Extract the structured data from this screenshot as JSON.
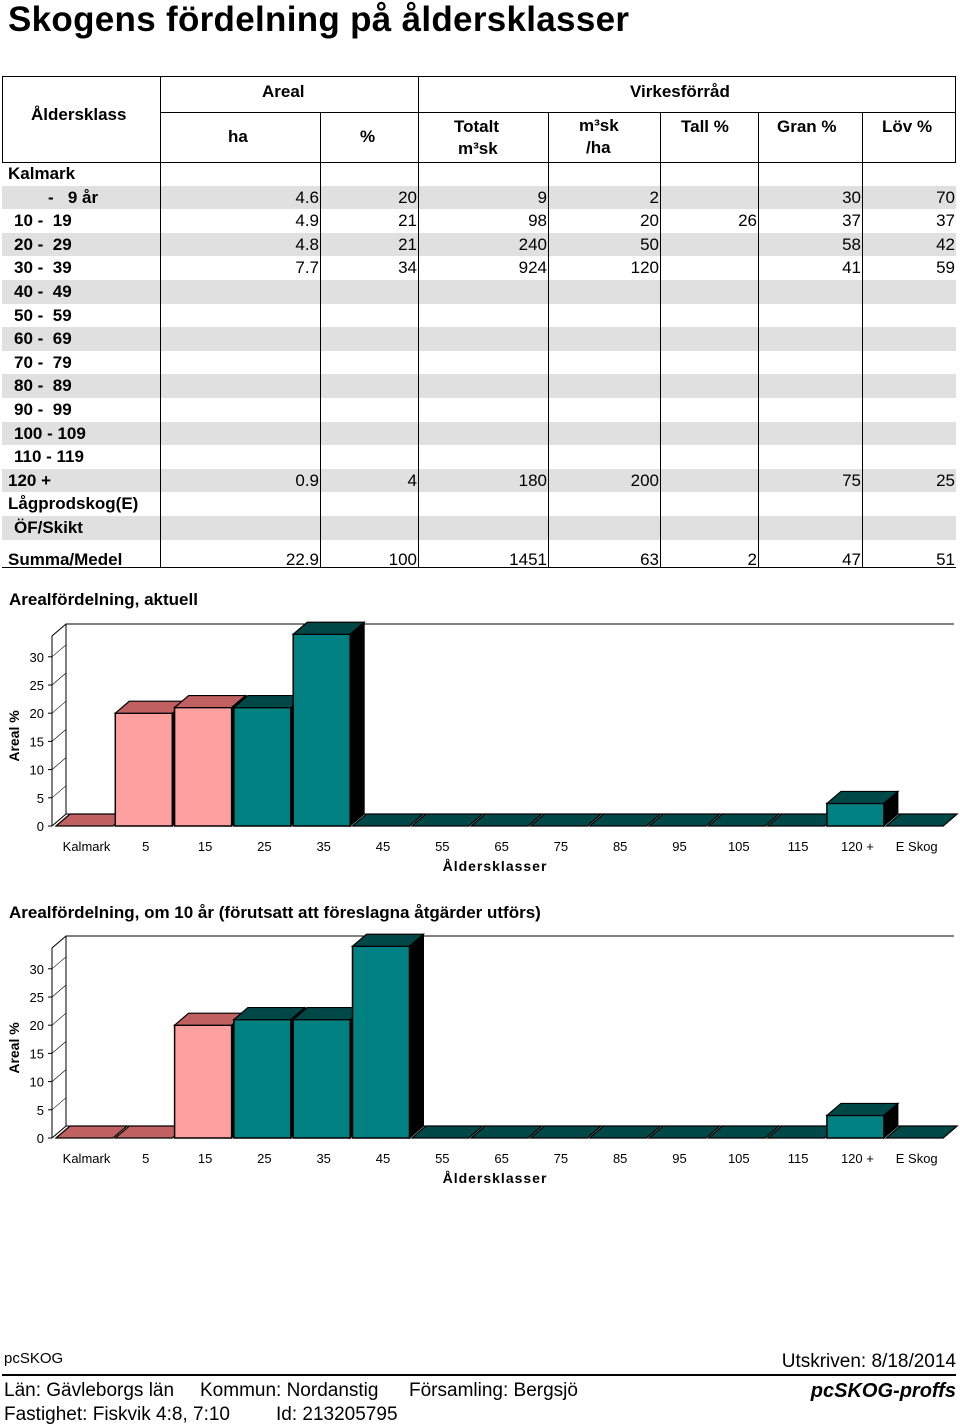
{
  "title": "Skogens fördelning på åldersklasser",
  "table": {
    "headers": {
      "aldersklass": "Åldersklass",
      "areal": "Areal",
      "virkesforrad": "Virkesförråd",
      "ha": "ha",
      "pct": "%",
      "totalt": "Totalt",
      "totalt_unit": "m³sk",
      "msk": "m³sk",
      "msk_unit": "/ha",
      "tall": "Tall %",
      "gran": "Gran %",
      "lov": "Löv %"
    },
    "rows": [
      {
        "label": "Kalmark",
        "ha": "",
        "pct": "",
        "totalt": "",
        "msk": "",
        "tall": "",
        "gran": "",
        "lov": ""
      },
      {
        "label": "-   9 år",
        "ha": "4.6",
        "pct": "20",
        "totalt": "9",
        "msk": "2",
        "tall": "",
        "gran": "30",
        "lov": "70"
      },
      {
        "label": "10 -  19",
        "ha": "4.9",
        "pct": "21",
        "totalt": "98",
        "msk": "20",
        "tall": "26",
        "gran": "37",
        "lov": "37"
      },
      {
        "label": "20 -  29",
        "ha": "4.8",
        "pct": "21",
        "totalt": "240",
        "msk": "50",
        "tall": "",
        "gran": "58",
        "lov": "42"
      },
      {
        "label": "30 -  39",
        "ha": "7.7",
        "pct": "34",
        "totalt": "924",
        "msk": "120",
        "tall": "",
        "gran": "41",
        "lov": "59"
      },
      {
        "label": "40 -  49",
        "ha": "",
        "pct": "",
        "totalt": "",
        "msk": "",
        "tall": "",
        "gran": "",
        "lov": ""
      },
      {
        "label": "50 -  59",
        "ha": "",
        "pct": "",
        "totalt": "",
        "msk": "",
        "tall": "",
        "gran": "",
        "lov": ""
      },
      {
        "label": "60 -  69",
        "ha": "",
        "pct": "",
        "totalt": "",
        "msk": "",
        "tall": "",
        "gran": "",
        "lov": ""
      },
      {
        "label": "70 -  79",
        "ha": "",
        "pct": "",
        "totalt": "",
        "msk": "",
        "tall": "",
        "gran": "",
        "lov": ""
      },
      {
        "label": "80 -  89",
        "ha": "",
        "pct": "",
        "totalt": "",
        "msk": "",
        "tall": "",
        "gran": "",
        "lov": ""
      },
      {
        "label": "90 -  99",
        "ha": "",
        "pct": "",
        "totalt": "",
        "msk": "",
        "tall": "",
        "gran": "",
        "lov": ""
      },
      {
        "label": "100 - 109",
        "ha": "",
        "pct": "",
        "totalt": "",
        "msk": "",
        "tall": "",
        "gran": "",
        "lov": ""
      },
      {
        "label": "110 - 119",
        "ha": "",
        "pct": "",
        "totalt": "",
        "msk": "",
        "tall": "",
        "gran": "",
        "lov": ""
      },
      {
        "label": "120 +",
        "ha": "0.9",
        "pct": "4",
        "totalt": "180",
        "msk": "200",
        "tall": "",
        "gran": "75",
        "lov": "25"
      },
      {
        "label": "Lågprodskog(E)",
        "ha": "",
        "pct": "",
        "totalt": "",
        "msk": "",
        "tall": "",
        "gran": "",
        "lov": ""
      },
      {
        "label": "ÖF/Skikt",
        "ha": "",
        "pct": "",
        "totalt": "",
        "msk": "",
        "tall": "",
        "gran": "",
        "lov": ""
      }
    ],
    "summary": {
      "label": "Summa/Medel",
      "ha": "22.9",
      "pct": "100",
      "totalt": "1451",
      "msk": "63",
      "tall": "2",
      "gran": "47",
      "lov": "51"
    }
  },
  "chart_data": [
    {
      "type": "bar",
      "title": "Arealfördelning, aktuell",
      "xlabel": "Åldersklasser",
      "ylabel": "Areal %",
      "categories": [
        "Kalmark",
        "5",
        "15",
        "25",
        "35",
        "45",
        "55",
        "65",
        "75",
        "85",
        "95",
        "105",
        "115",
        "120 +",
        "E Skog"
      ],
      "values": [
        0,
        20,
        21,
        21,
        34,
        0,
        0,
        0,
        0,
        0,
        0,
        0,
        0,
        4,
        0
      ],
      "colors": [
        "red",
        "red",
        "red",
        "teal",
        "teal",
        "teal",
        "teal",
        "teal",
        "teal",
        "teal",
        "teal",
        "teal",
        "teal",
        "teal",
        "teal"
      ],
      "yticks": [
        0,
        5,
        10,
        15,
        20,
        25,
        30
      ],
      "ylim": [
        0,
        35
      ],
      "grid": false
    },
    {
      "type": "bar",
      "title": "Arealfördelning, om 10 år (förutsatt att föreslagna åtgärder utförs)",
      "xlabel": "Åldersklasser",
      "ylabel": "Areal %",
      "categories": [
        "Kalmark",
        "5",
        "15",
        "25",
        "35",
        "45",
        "55",
        "65",
        "75",
        "85",
        "95",
        "105",
        "115",
        "120 +",
        "E Skog"
      ],
      "values": [
        0,
        0,
        20,
        21,
        21,
        34,
        0,
        0,
        0,
        0,
        0,
        0,
        0,
        4,
        0
      ],
      "colors": [
        "red",
        "red",
        "red",
        "teal",
        "teal",
        "teal",
        "teal",
        "teal",
        "teal",
        "teal",
        "teal",
        "teal",
        "teal",
        "teal",
        "teal"
      ],
      "yticks": [
        0,
        5,
        10,
        15,
        20,
        25,
        30
      ],
      "ylim": [
        0,
        35
      ],
      "grid": false
    }
  ],
  "palette": {
    "red_front": "#ffa0a0",
    "red_top": "#c06060",
    "red_side": "#b05050",
    "teal_front": "#008080",
    "teal_top": "#004848",
    "teal_side": "#003838",
    "band": "#e0e0e0"
  },
  "footer": {
    "software": "pcSKOG",
    "printed": "Utskriven: 8/18/2014",
    "lan": "Län: Gävleborgs län",
    "kommun": "Kommun: Nordanstig",
    "forsamling": "Församling: Bergsjö",
    "fastighet": "Fastighet: Fiskvik 4:8, 7:10",
    "id": "Id: 213205795",
    "logo": "pcSKOG-proffs"
  }
}
